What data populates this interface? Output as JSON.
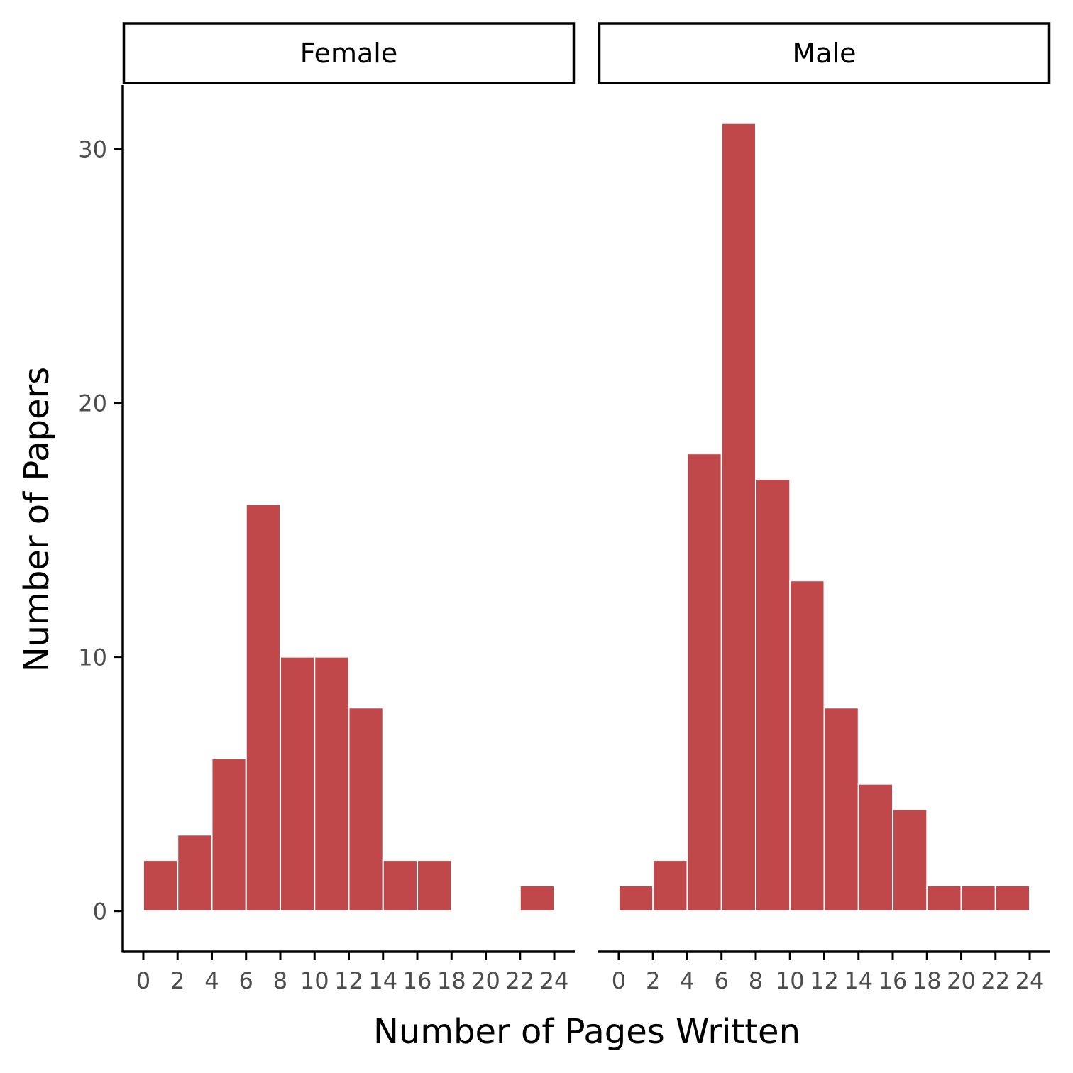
{
  "chart_data": {
    "type": "bar",
    "title": "",
    "xlabel": "Number of Pages Written",
    "ylabel": "Number of Papers",
    "xlim": [
      -1.2,
      25.2
    ],
    "ylim": [
      -1.6,
      32.5
    ],
    "x_ticks": [
      "0",
      "2",
      "4",
      "6",
      "8",
      "10",
      "12",
      "14",
      "16",
      "18",
      "20",
      "22",
      "24"
    ],
    "y_ticks": [
      "0",
      "10",
      "20",
      "30"
    ],
    "bin_width": 2,
    "bin_starts": [
      0,
      2,
      4,
      6,
      8,
      10,
      12,
      14,
      16,
      18,
      20,
      22
    ],
    "grid": false,
    "legend": "none",
    "bar_color": "#c0474a",
    "panels": [
      {
        "label": "Female",
        "values": [
          2,
          3,
          6,
          16,
          10,
          10,
          8,
          2,
          2,
          0,
          0,
          1
        ]
      },
      {
        "label": "Male",
        "values": [
          1,
          2,
          18,
          31,
          17,
          13,
          8,
          5,
          4,
          1,
          1,
          1
        ]
      }
    ]
  }
}
